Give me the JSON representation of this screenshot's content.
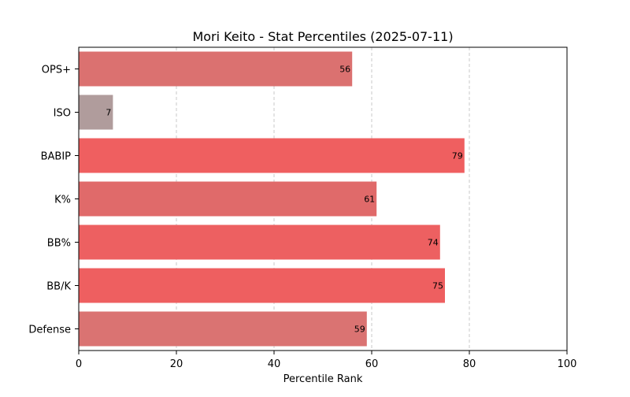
{
  "chart_data": {
    "type": "bar",
    "orientation": "horizontal",
    "title": "Mori Keito - Stat Percentiles (2025-07-11)",
    "xlabel": "Percentile Rank",
    "ylabel": "",
    "xlim": [
      0,
      100
    ],
    "xticks": [
      0,
      20,
      40,
      60,
      80,
      100
    ],
    "grid": "x-dashed",
    "categories": [
      "OPS+",
      "ISO",
      "BABIP",
      "K%",
      "BB%",
      "BB/K",
      "Defense"
    ],
    "values": [
      56,
      7,
      79,
      61,
      74,
      75,
      59
    ],
    "colors": [
      "#db7170",
      "#b09c9c",
      "#ef5f60",
      "#e06a6a",
      "#ed6061",
      "#ee5f60",
      "#da7372"
    ]
  }
}
